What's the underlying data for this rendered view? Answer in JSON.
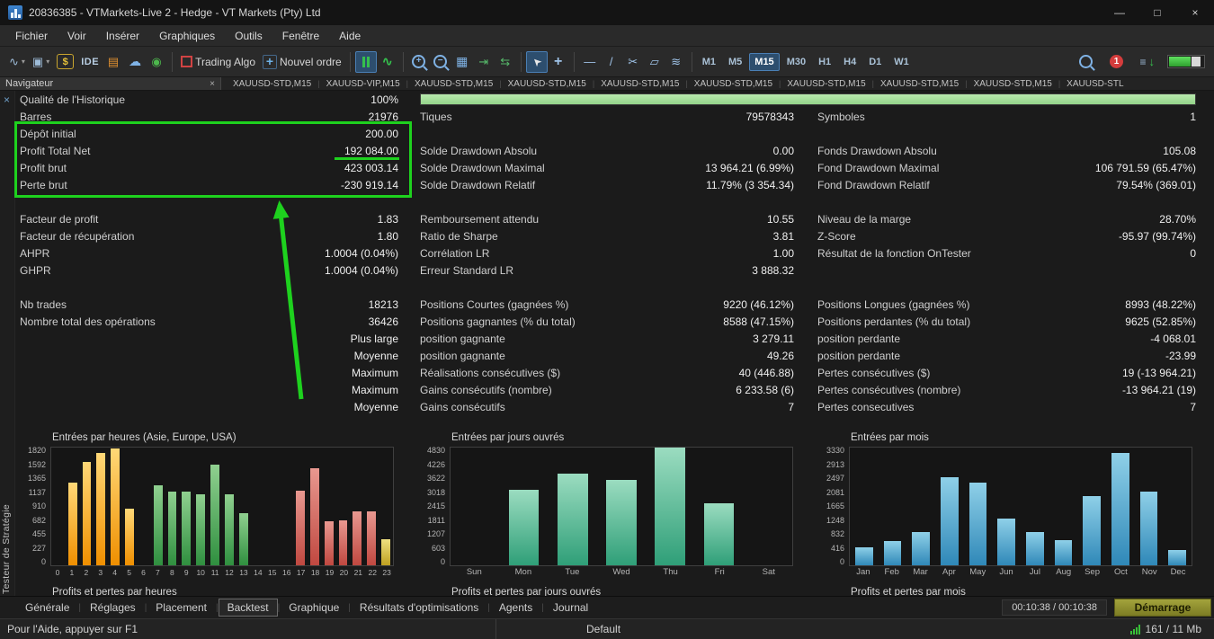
{
  "window": {
    "title": "20836385 - VTMarkets-Live 2 - Hedge - VT Markets (Pty) Ltd"
  },
  "menu": {
    "items": [
      "Fichier",
      "Voir",
      "Insérer",
      "Graphiques",
      "Outils",
      "Fenêtre",
      "Aide"
    ]
  },
  "toolbar": {
    "ide_label": "IDE",
    "trading_algo_label": "Trading Algo",
    "new_order_label": "Nouvel ordre",
    "timeframes": [
      "M1",
      "M5",
      "M15",
      "M30",
      "H1",
      "H4",
      "D1",
      "W1"
    ],
    "active_timeframe": "M15",
    "notification_count": "1"
  },
  "chart_tabs": [
    "XAUUSD-STD,M15",
    "XAUUSD-VIP,M15",
    "XAUUSD-STD,M15",
    "XAUUSD-STD,M15",
    "XAUUSD-STD,M15",
    "XAUUSD-STD,M15",
    "XAUUSD-STD,M15",
    "XAUUSD-STD,M15",
    "XAUUSD-STD,M15",
    "XAUUSD-STL"
  ],
  "navigator": {
    "title": "Navigateur"
  },
  "tester_panel_label": "Testeur de Stratégie",
  "report": {
    "progress_label": "Qualité de l'Historique",
    "progress_percent": "100%",
    "rows": [
      {
        "cells": [
          [
            "Barres",
            "21976"
          ],
          [
            "Tiques",
            "79578343"
          ],
          [
            "Symboles",
            "1"
          ]
        ]
      },
      {
        "cells": [
          [
            "Dépôt initial",
            "200.00"
          ],
          [
            "",
            ""
          ],
          [
            "",
            ""
          ]
        ]
      },
      {
        "cells": [
          [
            "Profit Total Net",
            "192 084.00"
          ],
          [
            "Solde Drawdown Absolu",
            "0.00"
          ],
          [
            "Fonds Drawdown Absolu",
            "105.08"
          ]
        ]
      },
      {
        "cells": [
          [
            "Profit brut",
            "423 003.14"
          ],
          [
            "Solde Drawdown Maximal",
            "13 964.21 (6.99%)"
          ],
          [
            "Fond Drawdown Maximal",
            "106 791.59 (65.47%)"
          ]
        ]
      },
      {
        "cells": [
          [
            "Perte brut",
            "-230 919.14"
          ],
          [
            "Solde Drawdown Relatif",
            "11.79% (3 354.34)"
          ],
          [
            "Fond Drawdown Relatif",
            "79.54% (369.01)"
          ]
        ]
      },
      {
        "spacer": true
      },
      {
        "cells": [
          [
            "Facteur de profit",
            "1.83"
          ],
          [
            "Remboursement attendu",
            "10.55"
          ],
          [
            "Niveau de la marge",
            "28.70%"
          ]
        ]
      },
      {
        "cells": [
          [
            "Facteur de récupération",
            "1.80"
          ],
          [
            "Ratio de Sharpe",
            "3.81"
          ],
          [
            "Z-Score",
            "-95.97 (99.74%)"
          ]
        ]
      },
      {
        "cells": [
          [
            "AHPR",
            "1.0004 (0.04%)"
          ],
          [
            "Corrélation LR",
            "1.00"
          ],
          [
            "Résultat de la fonction OnTester",
            "0"
          ]
        ]
      },
      {
        "cells": [
          [
            "GHPR",
            "1.0004 (0.04%)"
          ],
          [
            "Erreur Standard LR",
            "3 888.32"
          ],
          [
            "",
            ""
          ]
        ]
      },
      {
        "spacer": true
      },
      {
        "cells": [
          [
            "Nb trades",
            "18213"
          ],
          [
            "Positions Courtes (gagnées %)",
            "9220 (46.12%)"
          ],
          [
            "Positions Longues (gagnées %)",
            "8993 (48.22%)"
          ]
        ]
      },
      {
        "cells": [
          [
            "Nombre total des opérations",
            "36426"
          ],
          [
            "Positions gagnantes (% du total)",
            "8588 (47.15%)"
          ],
          [
            "Positions perdantes (% du total)",
            "9625 (52.85%)"
          ]
        ]
      },
      {
        "cells": [
          [
            "",
            "Plus large"
          ],
          [
            "position gagnante",
            "3 279.11"
          ],
          [
            "position perdante",
            "-4 068.01"
          ]
        ]
      },
      {
        "cells": [
          [
            "",
            "Moyenne"
          ],
          [
            "position gagnante",
            "49.26"
          ],
          [
            "position perdante",
            "-23.99"
          ]
        ]
      },
      {
        "cells": [
          [
            "",
            "Maximum"
          ],
          [
            "Réalisations consécutives ($)",
            "40 (446.88)"
          ],
          [
            "Pertes consécutives ($)",
            "19 (-13 964.21)"
          ]
        ]
      },
      {
        "cells": [
          [
            "",
            "Maximum"
          ],
          [
            "Gains consécutifs (nombre)",
            "6 233.58 (6)"
          ],
          [
            "Pertes consécutives (nombre)",
            "-13 964.21 (19)"
          ]
        ]
      },
      {
        "cells": [
          [
            "",
            "Moyenne"
          ],
          [
            "Gains consécutifs",
            "7"
          ],
          [
            "Pertes consecutives",
            "7"
          ]
        ]
      }
    ]
  },
  "chart_data": [
    {
      "type": "bar",
      "title": "Entrées par heures (Asie, Europe, USA)",
      "subtitle": "Profits et pertes par heures",
      "categories": [
        "0",
        "1",
        "2",
        "3",
        "4",
        "5",
        "6",
        "7",
        "8",
        "9",
        "10",
        "11",
        "12",
        "13",
        "14",
        "15",
        "16",
        "17",
        "18",
        "19",
        "20",
        "21",
        "22",
        "23"
      ],
      "values": [
        0,
        1280,
        1600,
        1740,
        1810,
        870,
        0,
        1240,
        1140,
        1140,
        1100,
        1560,
        1100,
        800,
        0,
        0,
        0,
        1150,
        1500,
        680,
        700,
        830,
        830,
        400
      ],
      "bar_colors": [
        "orange",
        "orange",
        "orange",
        "orange",
        "orange",
        "orange",
        "green",
        "green",
        "green",
        "green",
        "green",
        "green",
        "green",
        "green",
        "red",
        "red",
        "red",
        "red",
        "red",
        "red",
        "red",
        "red",
        "red",
        "yellow"
      ],
      "yticks": [
        1820,
        1592,
        1365,
        1137,
        910,
        682,
        455,
        227,
        0
      ],
      "ylim": [
        0,
        1820
      ]
    },
    {
      "type": "bar",
      "title": "Entrées par jours ouvrés",
      "subtitle": "Profits et pertes par jours ouvrés",
      "categories": [
        "Sun",
        "Mon",
        "Tue",
        "Wed",
        "Thu",
        "Fri",
        "Sat"
      ],
      "values": [
        0,
        3100,
        3750,
        3500,
        4830,
        2550,
        0
      ],
      "bar_colors": [
        "teal",
        "teal",
        "teal",
        "teal",
        "teal",
        "teal",
        "teal"
      ],
      "yticks": [
        4830,
        4226,
        3622,
        3018,
        2415,
        1811,
        1207,
        603,
        0
      ],
      "ylim": [
        0,
        4830
      ]
    },
    {
      "type": "bar",
      "title": "Entrées par mois",
      "subtitle": "Profits et pertes par mois",
      "categories": [
        "Jan",
        "Feb",
        "Mar",
        "Apr",
        "May",
        "Jun",
        "Jul",
        "Aug",
        "Sep",
        "Oct",
        "Nov",
        "Dec"
      ],
      "values": [
        500,
        690,
        950,
        2480,
        2330,
        1330,
        950,
        700,
        1950,
        3180,
        2080,
        430
      ],
      "bar_colors": [
        "blue",
        "blue",
        "blue",
        "blue",
        "blue",
        "blue",
        "blue",
        "blue",
        "blue",
        "blue",
        "blue",
        "blue"
      ],
      "yticks": [
        3330,
        2913,
        2497,
        2081,
        1665,
        1248,
        832,
        416,
        0
      ],
      "ylim": [
        0,
        3330
      ]
    }
  ],
  "tester_tabs": {
    "tabs": [
      "Générale",
      "Réglages",
      "Placement",
      "Backtest",
      "Graphique",
      "Résultats d'optimisations",
      "Agents",
      "Journal"
    ],
    "active": "Backtest",
    "time": "00:10:38 / 00:10:38",
    "start_button": "Démarrage"
  },
  "statusbar": {
    "help": "Pour l'Aide, appuyer sur F1",
    "profile": "Default",
    "traffic": "161 / 11 Mb"
  },
  "colors": {
    "annotation_green": "#1ed11e",
    "progress_green": "#9fdf9b",
    "start_button": "#8f8f2e",
    "bar_palette": {
      "orange": [
        "#ffd877",
        "#ef8f00"
      ],
      "green": [
        "#90d090",
        "#2f8f3f"
      ],
      "red": [
        "#e89890",
        "#c04840"
      ],
      "yellow": [
        "#efe080",
        "#bfa020"
      ],
      "teal": [
        "#9bdcc0",
        "#2f9f78"
      ],
      "blue": [
        "#8fd0e8",
        "#2f88b8"
      ]
    }
  },
  "icons": {
    "dropdown": "▾",
    "line_chart": "∿",
    "chart_layout": "▣",
    "book": "▤",
    "cloud": "☁",
    "community": "◉",
    "tick_chart": "∿",
    "grid": "▦",
    "tile_a": "⇥",
    "tile_b": "⇆",
    "cursor": "➤",
    "crosshair": "+",
    "hline": "―",
    "trendline": "/",
    "scissors": "✂",
    "polygon": "▱",
    "waves": "≋",
    "dom_arrow": "↓",
    "dom_bars": "≡",
    "minimize": "—",
    "maximize": "□",
    "close": "×",
    "nav_close": "×",
    "panel_close": "×",
    "zoom_plus": "+",
    "zoom_minus": "−",
    "new_order_plus": "+",
    "dollar": "$"
  }
}
